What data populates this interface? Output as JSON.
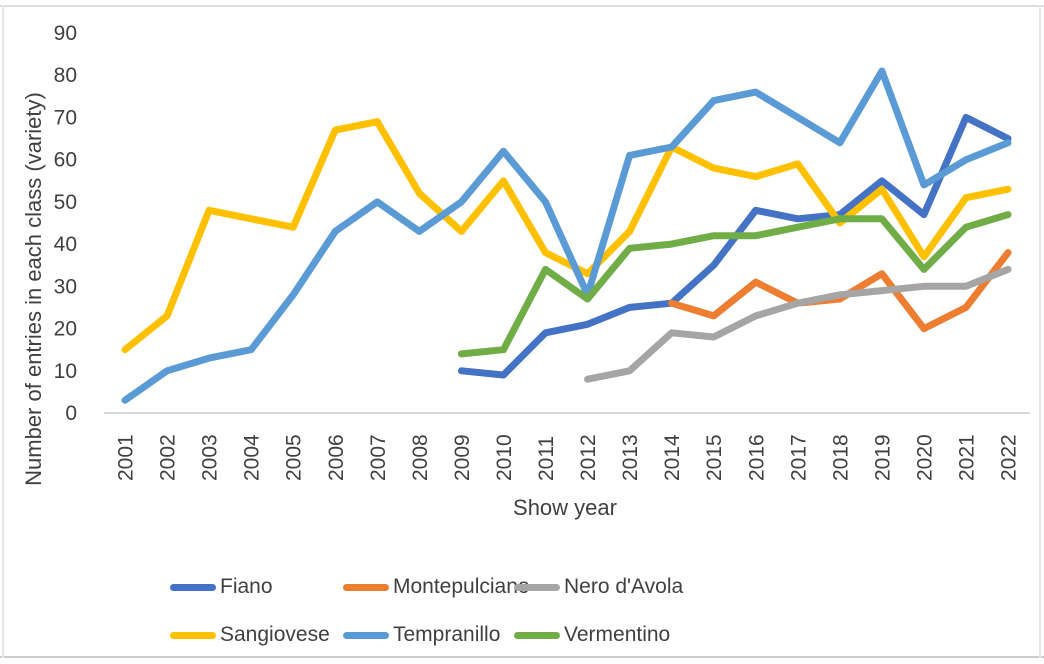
{
  "chart_data": {
    "type": "line",
    "title": "",
    "xlabel": "Show year",
    "ylabel": "Number of entries in each class (variety)",
    "ylim": [
      0,
      90
    ],
    "ytick_step": 10,
    "grid": false,
    "legend_position": "bottom",
    "x": [
      2001,
      2002,
      2003,
      2004,
      2005,
      2006,
      2007,
      2008,
      2009,
      2010,
      2011,
      2012,
      2013,
      2014,
      2015,
      2016,
      2017,
      2018,
      2019,
      2020,
      2021,
      2022
    ],
    "series": [
      {
        "name": "Fiano",
        "color": "#4472C4",
        "values": [
          null,
          null,
          null,
          null,
          null,
          null,
          null,
          null,
          10,
          9,
          19,
          21,
          25,
          26,
          35,
          48,
          46,
          47,
          55,
          47,
          70,
          65
        ]
      },
      {
        "name": "Montepulciano",
        "color": "#ED7D31",
        "values": [
          null,
          null,
          null,
          null,
          null,
          null,
          null,
          null,
          null,
          null,
          null,
          null,
          null,
          26,
          23,
          31,
          26,
          27,
          33,
          20,
          25,
          38
        ]
      },
      {
        "name": "Nero d'Avola",
        "color": "#A5A5A5",
        "values": [
          null,
          null,
          null,
          null,
          null,
          null,
          null,
          null,
          null,
          null,
          null,
          8,
          10,
          19,
          18,
          23,
          26,
          28,
          29,
          30,
          30,
          34
        ]
      },
      {
        "name": "Sangiovese",
        "color": "#FFC000",
        "values": [
          15,
          23,
          48,
          46,
          44,
          67,
          69,
          52,
          43,
          55,
          38,
          33,
          43,
          63,
          58,
          56,
          59,
          45,
          53,
          37,
          51,
          53
        ]
      },
      {
        "name": "Tempranillo",
        "color": "#5B9BD5",
        "values": [
          3,
          10,
          13,
          15,
          28,
          43,
          50,
          43,
          50,
          62,
          50,
          28,
          61,
          63,
          74,
          76,
          70,
          64,
          81,
          54,
          60,
          64
        ]
      },
      {
        "name": "Vermentino",
        "color": "#70AD47",
        "values": [
          null,
          null,
          null,
          null,
          null,
          null,
          null,
          null,
          14,
          15,
          34,
          27,
          39,
          40,
          42,
          42,
          44,
          46,
          46,
          34,
          44,
          47
        ]
      }
    ]
  },
  "axes": {
    "y_title": "Number of entries in each class (variety)",
    "x_title": "Show year"
  }
}
